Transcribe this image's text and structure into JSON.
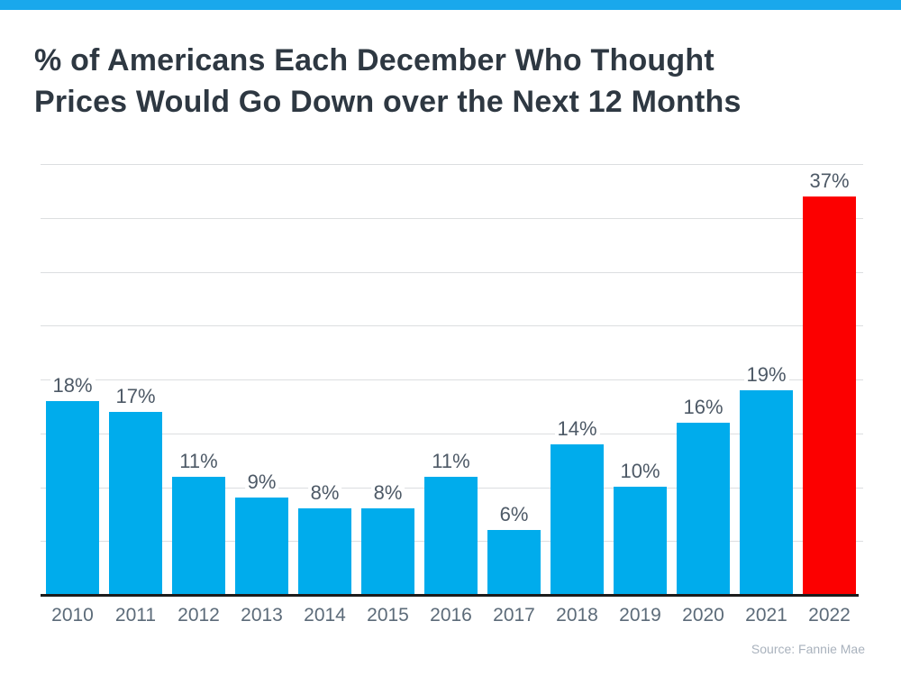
{
  "page": {
    "accent_stripe_color": "#19A8EC",
    "background_color": "#ffffff"
  },
  "header": {
    "title_lines": [
      "% of Americans Each December Who Thought",
      "Prices Would Go Down over the Next 12 Months"
    ],
    "title_color": "#2E3842"
  },
  "chart_data": {
    "type": "bar",
    "title": "% of Americans Each December Who Thought Prices Would Go Down over the Next 12 Months",
    "categories": [
      "2010",
      "2011",
      "2012",
      "2013",
      "2014",
      "2015",
      "2016",
      "2017",
      "2018",
      "2019",
      "2020",
      "2021",
      "2022"
    ],
    "values": [
      18,
      17,
      11,
      9,
      8,
      8,
      11,
      6,
      14,
      10,
      16,
      19,
      37
    ],
    "value_labels": [
      "18%",
      "17%",
      "11%",
      "9%",
      "8%",
      "8%",
      "11%",
      "6%",
      "14%",
      "10%",
      "16%",
      "19%",
      "37%"
    ],
    "xlabel": "",
    "ylabel": "",
    "ylim": [
      0,
      40
    ],
    "gridline_step": 5,
    "grid": true,
    "legend_position": "none",
    "bar_color": "#00ACEC",
    "highlight_index": 12,
    "highlight_color": "#FC0000",
    "gridline_color": "#DCDEE0",
    "axis_line_color": "#1C1C1C",
    "value_label_color": "#4D5966",
    "tick_label_color": "#5C6B79"
  },
  "footer": {
    "source_label": "Source: Fannie Mae"
  }
}
